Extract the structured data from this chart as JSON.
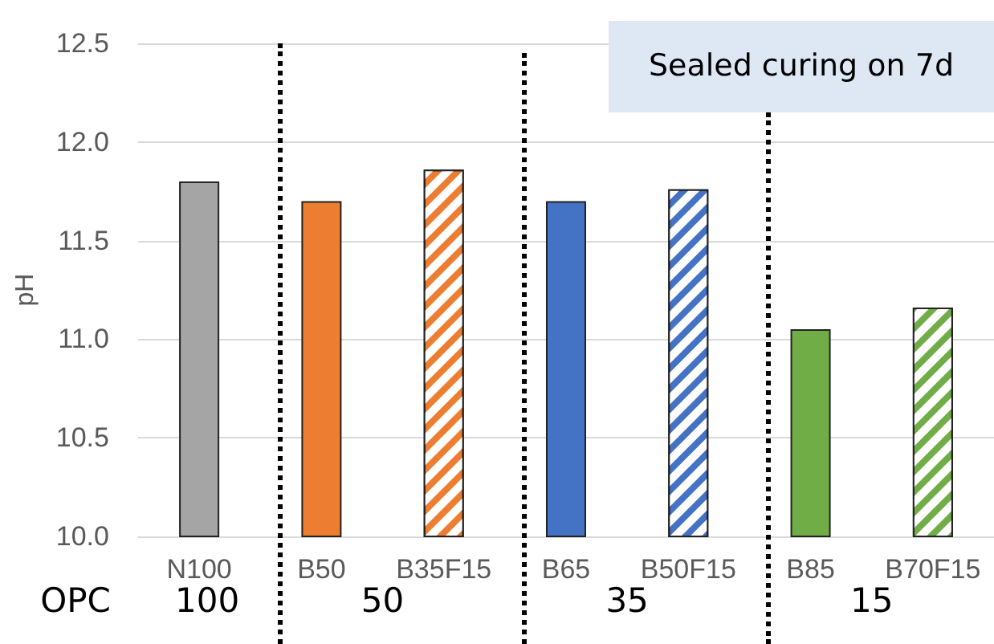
{
  "chart_data": {
    "type": "bar",
    "title": "Sealed curing on 7d",
    "ylabel": "pH",
    "categories": [
      "N100",
      "B50",
      "B35F15",
      "B65",
      "B50F15",
      "B85",
      "B70F15"
    ],
    "series": [
      {
        "values": [
          11.8,
          11.7,
          null,
          11.7,
          null,
          11.05,
          null
        ],
        "colors": [
          "#a5a5a5",
          "#ed7d31",
          null,
          "#4472c4",
          null,
          "#70ad47",
          null
        ]
      },
      {
        "values": [
          null,
          null,
          11.86,
          null,
          11.76,
          null,
          11.16
        ],
        "colors": [
          null,
          null,
          "#ed7d31",
          null,
          "#4472c4",
          null,
          "#70ad47"
        ]
      }
    ],
    "ylim": [
      10,
      12.5
    ],
    "yticks": [
      {
        "value": 10,
        "label": "10.0"
      },
      10.5,
      {
        "value": 11,
        "label": "11.0"
      },
      11.5,
      {
        "value": 12,
        "label": "12.0"
      },
      12.5
    ],
    "grid": "y",
    "annotations": [
      "OPC",
      "100",
      "50",
      "35",
      "15"
    ]
  }
}
